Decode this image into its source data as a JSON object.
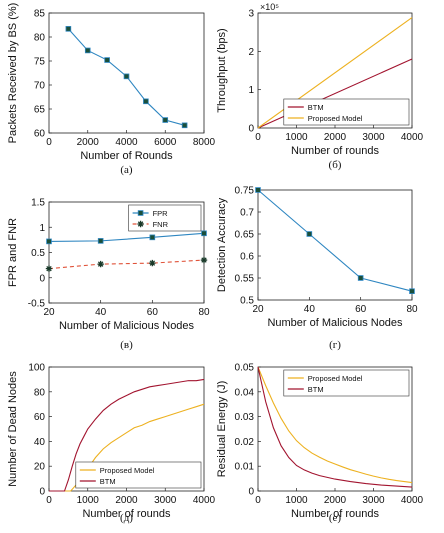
{
  "chart_data": [
    {
      "id": "a",
      "type": "line",
      "caption": "(a)",
      "xlabel": "Number of Rounds",
      "ylabel": "Packets Received by BS (%)",
      "xlim": [
        0,
        8000
      ],
      "ylim": [
        60,
        85
      ],
      "xticks": [
        0,
        2000,
        4000,
        6000,
        8000
      ],
      "yticks": [
        60,
        65,
        70,
        75,
        80,
        85
      ],
      "grid": false,
      "series": [
        {
          "color": "#2e86c1",
          "marker": "square",
          "dash": "",
          "x": [
            1000,
            2000,
            3000,
            4000,
            5000,
            6000,
            7000
          ],
          "y": [
            81.7,
            77.2,
            75.2,
            71.8,
            66.6,
            62.7,
            61.6
          ]
        }
      ]
    },
    {
      "id": "b",
      "type": "line",
      "caption": "(б)",
      "xlabel": "Number of rounds",
      "ylabel": "Throughput (bps)",
      "exponent_label": "×10⁵",
      "xlim": [
        0,
        4000
      ],
      "ylim": [
        0,
        3
      ],
      "xticks": [
        0,
        1000,
        2000,
        3000,
        4000
      ],
      "yticks": [
        0,
        1,
        2,
        3
      ],
      "grid": false,
      "legend_position": "bottom-right",
      "series": [
        {
          "name": "BTM",
          "color": "#a2142f",
          "marker": "none",
          "dash": "",
          "x": [
            0,
            4000
          ],
          "y": [
            0,
            1.8
          ]
        },
        {
          "name": "Proposed Model",
          "color": "#edb120",
          "marker": "none",
          "dash": "",
          "x": [
            0,
            4000
          ],
          "y": [
            0,
            2.88
          ]
        }
      ]
    },
    {
      "id": "c",
      "type": "line",
      "caption": "(в)",
      "xlabel": "Number of Malicious Nodes",
      "ylabel": "FPR and FNR",
      "xlim": [
        20,
        80
      ],
      "ylim": [
        -0.5,
        1.5
      ],
      "xticks": [
        20,
        40,
        60,
        80
      ],
      "yticks": [
        -0.5,
        0,
        0.5,
        1,
        1.5
      ],
      "grid": false,
      "legend_position": "top-right",
      "series": [
        {
          "name": "FPR",
          "color": "#2e86c1",
          "marker": "square",
          "dash": "",
          "x": [
            20,
            40,
            60,
            80
          ],
          "y": [
            0.72,
            0.73,
            0.8,
            0.88
          ]
        },
        {
          "name": "FNR",
          "color": "#e0533a",
          "marker": "star",
          "dash": "4,3",
          "x": [
            20,
            40,
            60,
            80
          ],
          "y": [
            0.18,
            0.27,
            0.29,
            0.35
          ]
        }
      ]
    },
    {
      "id": "d",
      "type": "line",
      "caption": "(г)",
      "xlabel": "Number of Malicious Nodes",
      "ylabel": "Detection Accuracy",
      "xlim": [
        20,
        80
      ],
      "ylim": [
        0.5,
        0.75
      ],
      "xticks": [
        20,
        40,
        60,
        80
      ],
      "yticks": [
        0.5,
        0.55,
        0.6,
        0.65,
        0.7,
        0.75
      ],
      "grid": false,
      "series": [
        {
          "color": "#2e86c1",
          "marker": "square",
          "dash": "",
          "x": [
            20,
            40,
            60,
            80
          ],
          "y": [
            0.75,
            0.65,
            0.55,
            0.52
          ]
        }
      ]
    },
    {
      "id": "e",
      "type": "line",
      "caption": "(д)",
      "xlabel": "Number of rounds",
      "ylabel": "Number of Dead Nodes",
      "xlim": [
        0,
        4000
      ],
      "ylim": [
        0,
        100
      ],
      "xticks": [
        0,
        1000,
        2000,
        3000,
        4000
      ],
      "yticks": [
        0,
        20,
        40,
        60,
        80,
        100
      ],
      "grid": false,
      "legend_position": "bottom-right",
      "series": [
        {
          "name": "Proposed Model",
          "color": "#edb120",
          "marker": "none",
          "dash": "",
          "x": [
            0,
            560,
            700,
            800,
            900,
            1000,
            1200,
            1400,
            1600,
            1800,
            2000,
            2200,
            2400,
            2600,
            2800,
            3000,
            3200,
            3400,
            3600,
            3800,
            4000
          ],
          "y": [
            0,
            0,
            5,
            10,
            14,
            18,
            27,
            34,
            39,
            43,
            47,
            51,
            53,
            56,
            58,
            60,
            62,
            64,
            66,
            68,
            70
          ]
        },
        {
          "name": "BTM",
          "color": "#a2142f",
          "marker": "none",
          "dash": "",
          "x": [
            0,
            400,
            500,
            600,
            700,
            800,
            900,
            1000,
            1200,
            1400,
            1600,
            1800,
            2000,
            2200,
            2400,
            2600,
            2800,
            3000,
            3200,
            3400,
            3600,
            3800,
            4000
          ],
          "y": [
            0,
            0,
            9,
            20,
            30,
            38,
            44,
            50,
            58,
            65,
            70,
            74,
            77,
            80,
            82,
            84,
            85,
            86,
            87,
            88,
            89,
            89,
            90
          ]
        }
      ]
    },
    {
      "id": "f",
      "type": "line",
      "caption": "(e)",
      "xlabel": "Number of rounds",
      "ylabel": "Residual Energy (J)",
      "xlim": [
        0,
        4000
      ],
      "ylim": [
        0,
        0.05
      ],
      "xticks": [
        0,
        1000,
        2000,
        3000,
        4000
      ],
      "yticks": [
        0,
        0.01,
        0.02,
        0.03,
        0.04,
        0.05
      ],
      "grid": false,
      "legend_position": "top-right",
      "series": [
        {
          "name": "Proposed Model",
          "color": "#edb120",
          "marker": "none",
          "dash": "",
          "x": [
            0,
            200,
            400,
            600,
            800,
            1000,
            1200,
            1400,
            1600,
            1800,
            2000,
            2200,
            2400,
            2600,
            2800,
            3000,
            3200,
            3400,
            3600,
            3800,
            4000
          ],
          "y": [
            0.05,
            0.0425,
            0.0355,
            0.0293,
            0.0242,
            0.0203,
            0.0175,
            0.0153,
            0.0136,
            0.0121,
            0.0109,
            0.0097,
            0.0086,
            0.0077,
            0.0068,
            0.006,
            0.0053,
            0.0047,
            0.0042,
            0.0038,
            0.0034
          ]
        },
        {
          "name": "BTM",
          "color": "#a2142f",
          "marker": "none",
          "dash": "",
          "x": [
            0,
            200,
            400,
            600,
            800,
            1000,
            1200,
            1400,
            1600,
            1800,
            2000,
            2200,
            2400,
            2600,
            2800,
            3000,
            3200,
            3400,
            3600,
            3800,
            4000
          ],
          "y": [
            0.05,
            0.036,
            0.0255,
            0.0182,
            0.0135,
            0.0103,
            0.0085,
            0.0072,
            0.0062,
            0.0055,
            0.0048,
            0.0043,
            0.0038,
            0.0034,
            0.003,
            0.0027,
            0.0024,
            0.0022,
            0.002,
            0.0018,
            0.0016
          ]
        }
      ]
    }
  ]
}
